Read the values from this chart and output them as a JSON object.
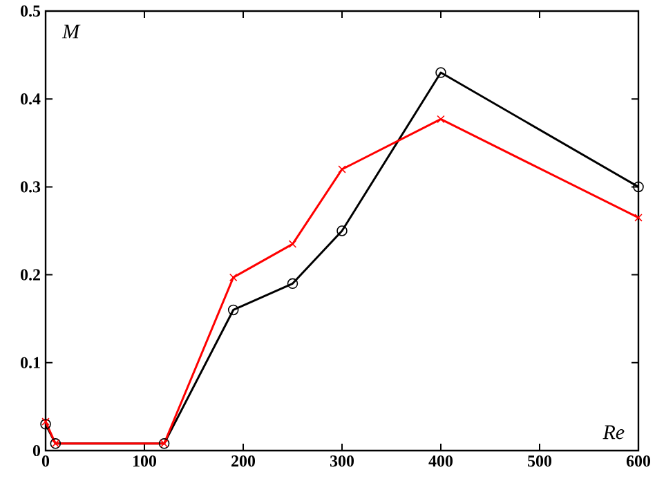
{
  "chart_data": {
    "type": "line",
    "xlabel": "Re",
    "ylabel": "M",
    "xlim": [
      0,
      600
    ],
    "xticks": [
      0,
      100,
      200,
      300,
      400,
      500,
      600
    ],
    "ylim": [
      0,
      0.5
    ],
    "yticks": [
      0,
      0.1,
      0.2,
      0.3,
      0.4,
      0.5
    ],
    "grid": false,
    "series": [
      {
        "color": "#000000",
        "marker": "circle",
        "x": [
          0,
          10,
          120,
          190,
          250,
          300,
          400,
          600
        ],
        "values": [
          0.03,
          0.008,
          0.008,
          0.16,
          0.19,
          0.25,
          0.43,
          0.3
        ]
      },
      {
        "color": "#ff0000",
        "marker": "cross",
        "x": [
          0,
          10,
          120,
          190,
          250,
          300,
          400,
          600
        ],
        "values": [
          0.033,
          0.008,
          0.008,
          0.197,
          0.235,
          0.32,
          0.377,
          0.265
        ]
      }
    ]
  }
}
